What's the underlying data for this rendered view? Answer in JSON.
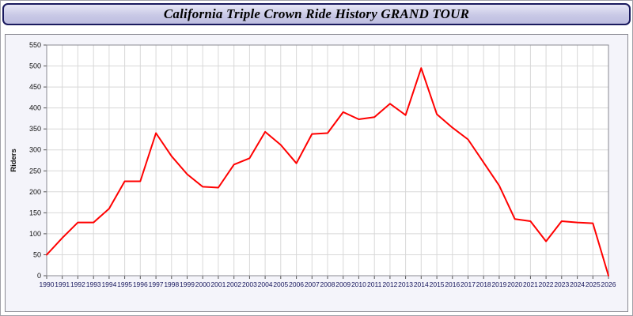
{
  "title_bar": {
    "title": "California Triple Crown Ride History GRAND TOUR"
  },
  "chart_data": {
    "type": "line",
    "title": "California Triple Crown Ride History GRAND TOUR",
    "series_name": "Riders",
    "xlabel": "",
    "ylabel": "Riders",
    "ylim": [
      0,
      550
    ],
    "ytick_step": 50,
    "grid": true,
    "legend_position": "none",
    "line_color": "#ff0000",
    "x": [
      1990,
      1991,
      1992,
      1993,
      1994,
      1995,
      1996,
      1997,
      1998,
      1999,
      2000,
      2001,
      2002,
      2003,
      2004,
      2005,
      2006,
      2007,
      2008,
      2009,
      2010,
      2011,
      2012,
      2013,
      2014,
      2015,
      2016,
      2017,
      2018,
      2019,
      2020,
      2021,
      2022,
      2023,
      2024,
      2025,
      2026
    ],
    "values": [
      50,
      90,
      127,
      127,
      160,
      225,
      225,
      340,
      285,
      242,
      212,
      210,
      265,
      280,
      343,
      312,
      268,
      338,
      340,
      390,
      373,
      378,
      410,
      383,
      495,
      385,
      353,
      325,
      270,
      215,
      135,
      130,
      82,
      130,
      127,
      125,
      0
    ]
  },
  "colors": {
    "title_bar_border": "#1a1a5e",
    "title_bar_background": "#c9c9e6",
    "chart_box_background": "#f4f4fa",
    "plot_background": "#ffffff",
    "gridline": "#d8d8d8",
    "axis": "#8a8a92",
    "x_tick_label": "#16165c",
    "y_tick_label": "#111111",
    "line": "#ff0000"
  }
}
